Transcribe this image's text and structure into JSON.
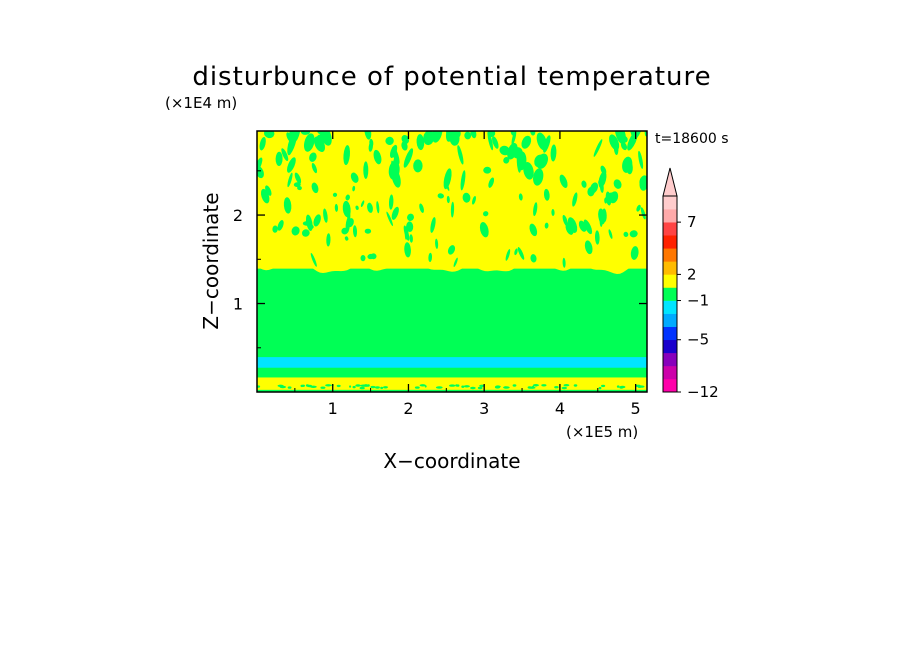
{
  "chart_data": {
    "type": "heatmap",
    "title": "disturbunce of potential temperature",
    "xlabel": "X−coordinate",
    "ylabel": "Z−coordinate",
    "x_unit": "(×1E5 m)",
    "y_unit": "(×1E4 m)",
    "time_label": "t=18600 s",
    "xlim": [
      0,
      5.15
    ],
    "ylim": [
      0,
      2.95
    ],
    "x_ticks": [
      1,
      2,
      3,
      4,
      5
    ],
    "y_ticks": [
      1,
      2
    ],
    "x_tick_labels": [
      "1",
      "2",
      "3",
      "4",
      "5"
    ],
    "y_tick_labels": [
      "1",
      "2"
    ],
    "bands": [
      {
        "z_bottom": 0.0,
        "z_top": 0.03,
        "color": "#00ff55"
      },
      {
        "z_bottom": 0.03,
        "z_top": 0.17,
        "color": "#ffff00"
      },
      {
        "z_bottom": 0.17,
        "z_top": 0.28,
        "color": "#00ff55"
      },
      {
        "z_bottom": 0.28,
        "z_top": 0.4,
        "color": "#00e5ff"
      },
      {
        "z_bottom": 0.4,
        "z_top": 1.4,
        "color": "#00ff55"
      },
      {
        "z_bottom": 1.4,
        "z_top": 2.95,
        "color": "#ffff00"
      }
    ],
    "colorbar": {
      "colors": [
        "#ff00aa",
        "#cc00aa",
        "#8800bb",
        "#1a00cc",
        "#0033ff",
        "#00aaff",
        "#00e5ff",
        "#00ff55",
        "#ffff00",
        "#ffbb00",
        "#ff7700",
        "#ff2200",
        "#ff4444",
        "#ffaaaa",
        "#ffcccc"
      ],
      "tick_labels": [
        {
          "label": "−12",
          "index": 0
        },
        {
          "label": "−5",
          "index": 4
        },
        {
          "label": "−1",
          "index": 7
        },
        {
          "label": "2",
          "index": 9
        },
        {
          "label": "7",
          "index": 13
        }
      ],
      "extend": "max"
    }
  }
}
